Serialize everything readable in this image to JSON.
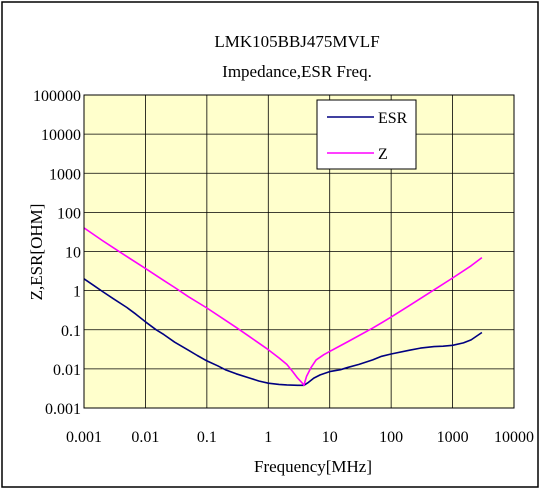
{
  "chart_data": {
    "type": "line",
    "title": "LMK105BBJ475MVLF",
    "subtitle": "Impedance,ESR Freq.",
    "xlabel": "Frequency[MHz]",
    "ylabel": "Z,ESR[OHM]",
    "x_scale": "log",
    "y_scale": "log",
    "xlim": [
      0.001,
      10000
    ],
    "ylim": [
      0.001,
      100000
    ],
    "x_ticks": [
      "0.001",
      "0.01",
      "0.1",
      "1",
      "10",
      "100",
      "1000",
      "10000"
    ],
    "y_ticks": [
      "0.001",
      "0.01",
      "0.1",
      "1",
      "10",
      "100",
      "1000",
      "10000",
      "100000"
    ],
    "grid": true,
    "legend_position": "top-right",
    "plot_background": "#ffffcc",
    "series": [
      {
        "name": "ESR",
        "color": "#000080",
        "x": [
          0.001,
          0.0015,
          0.002,
          0.003,
          0.005,
          0.007,
          0.01,
          0.015,
          0.02,
          0.03,
          0.05,
          0.07,
          0.1,
          0.15,
          0.2,
          0.3,
          0.5,
          0.7,
          1,
          1.5,
          2,
          3,
          3.8,
          4.5,
          5.5,
          7,
          10,
          15,
          20,
          30,
          50,
          70,
          100,
          200,
          300,
          500,
          700,
          1000,
          1500,
          2000,
          3000
        ],
        "y": [
          2,
          1.3,
          0.95,
          0.62,
          0.37,
          0.25,
          0.16,
          0.1,
          0.075,
          0.048,
          0.03,
          0.022,
          0.016,
          0.012,
          0.0095,
          0.0075,
          0.0058,
          0.0049,
          0.0043,
          0.004,
          0.0039,
          0.0038,
          0.0038,
          0.0045,
          0.0058,
          0.007,
          0.0085,
          0.0095,
          0.011,
          0.013,
          0.017,
          0.021,
          0.024,
          0.03,
          0.034,
          0.037,
          0.038,
          0.04,
          0.046,
          0.055,
          0.085
        ]
      },
      {
        "name": "Z",
        "color": "#ff00ff",
        "x": [
          0.001,
          0.002,
          0.003,
          0.005,
          0.01,
          0.02,
          0.03,
          0.05,
          0.1,
          0.2,
          0.3,
          0.5,
          1,
          1.5,
          2,
          2.5,
          3,
          3.5,
          3.8,
          4.2,
          5,
          6,
          8,
          10,
          20,
          50,
          100,
          200,
          500,
          1000,
          2000,
          3000
        ],
        "y": [
          40,
          19,
          12.5,
          7.4,
          3.7,
          1.8,
          1.2,
          0.7,
          0.36,
          0.175,
          0.115,
          0.066,
          0.031,
          0.019,
          0.013,
          0.0085,
          0.0058,
          0.0045,
          0.0038,
          0.0065,
          0.011,
          0.017,
          0.023,
          0.028,
          0.05,
          0.11,
          0.21,
          0.42,
          1.05,
          2.1,
          4.3,
          7
        ]
      }
    ]
  }
}
